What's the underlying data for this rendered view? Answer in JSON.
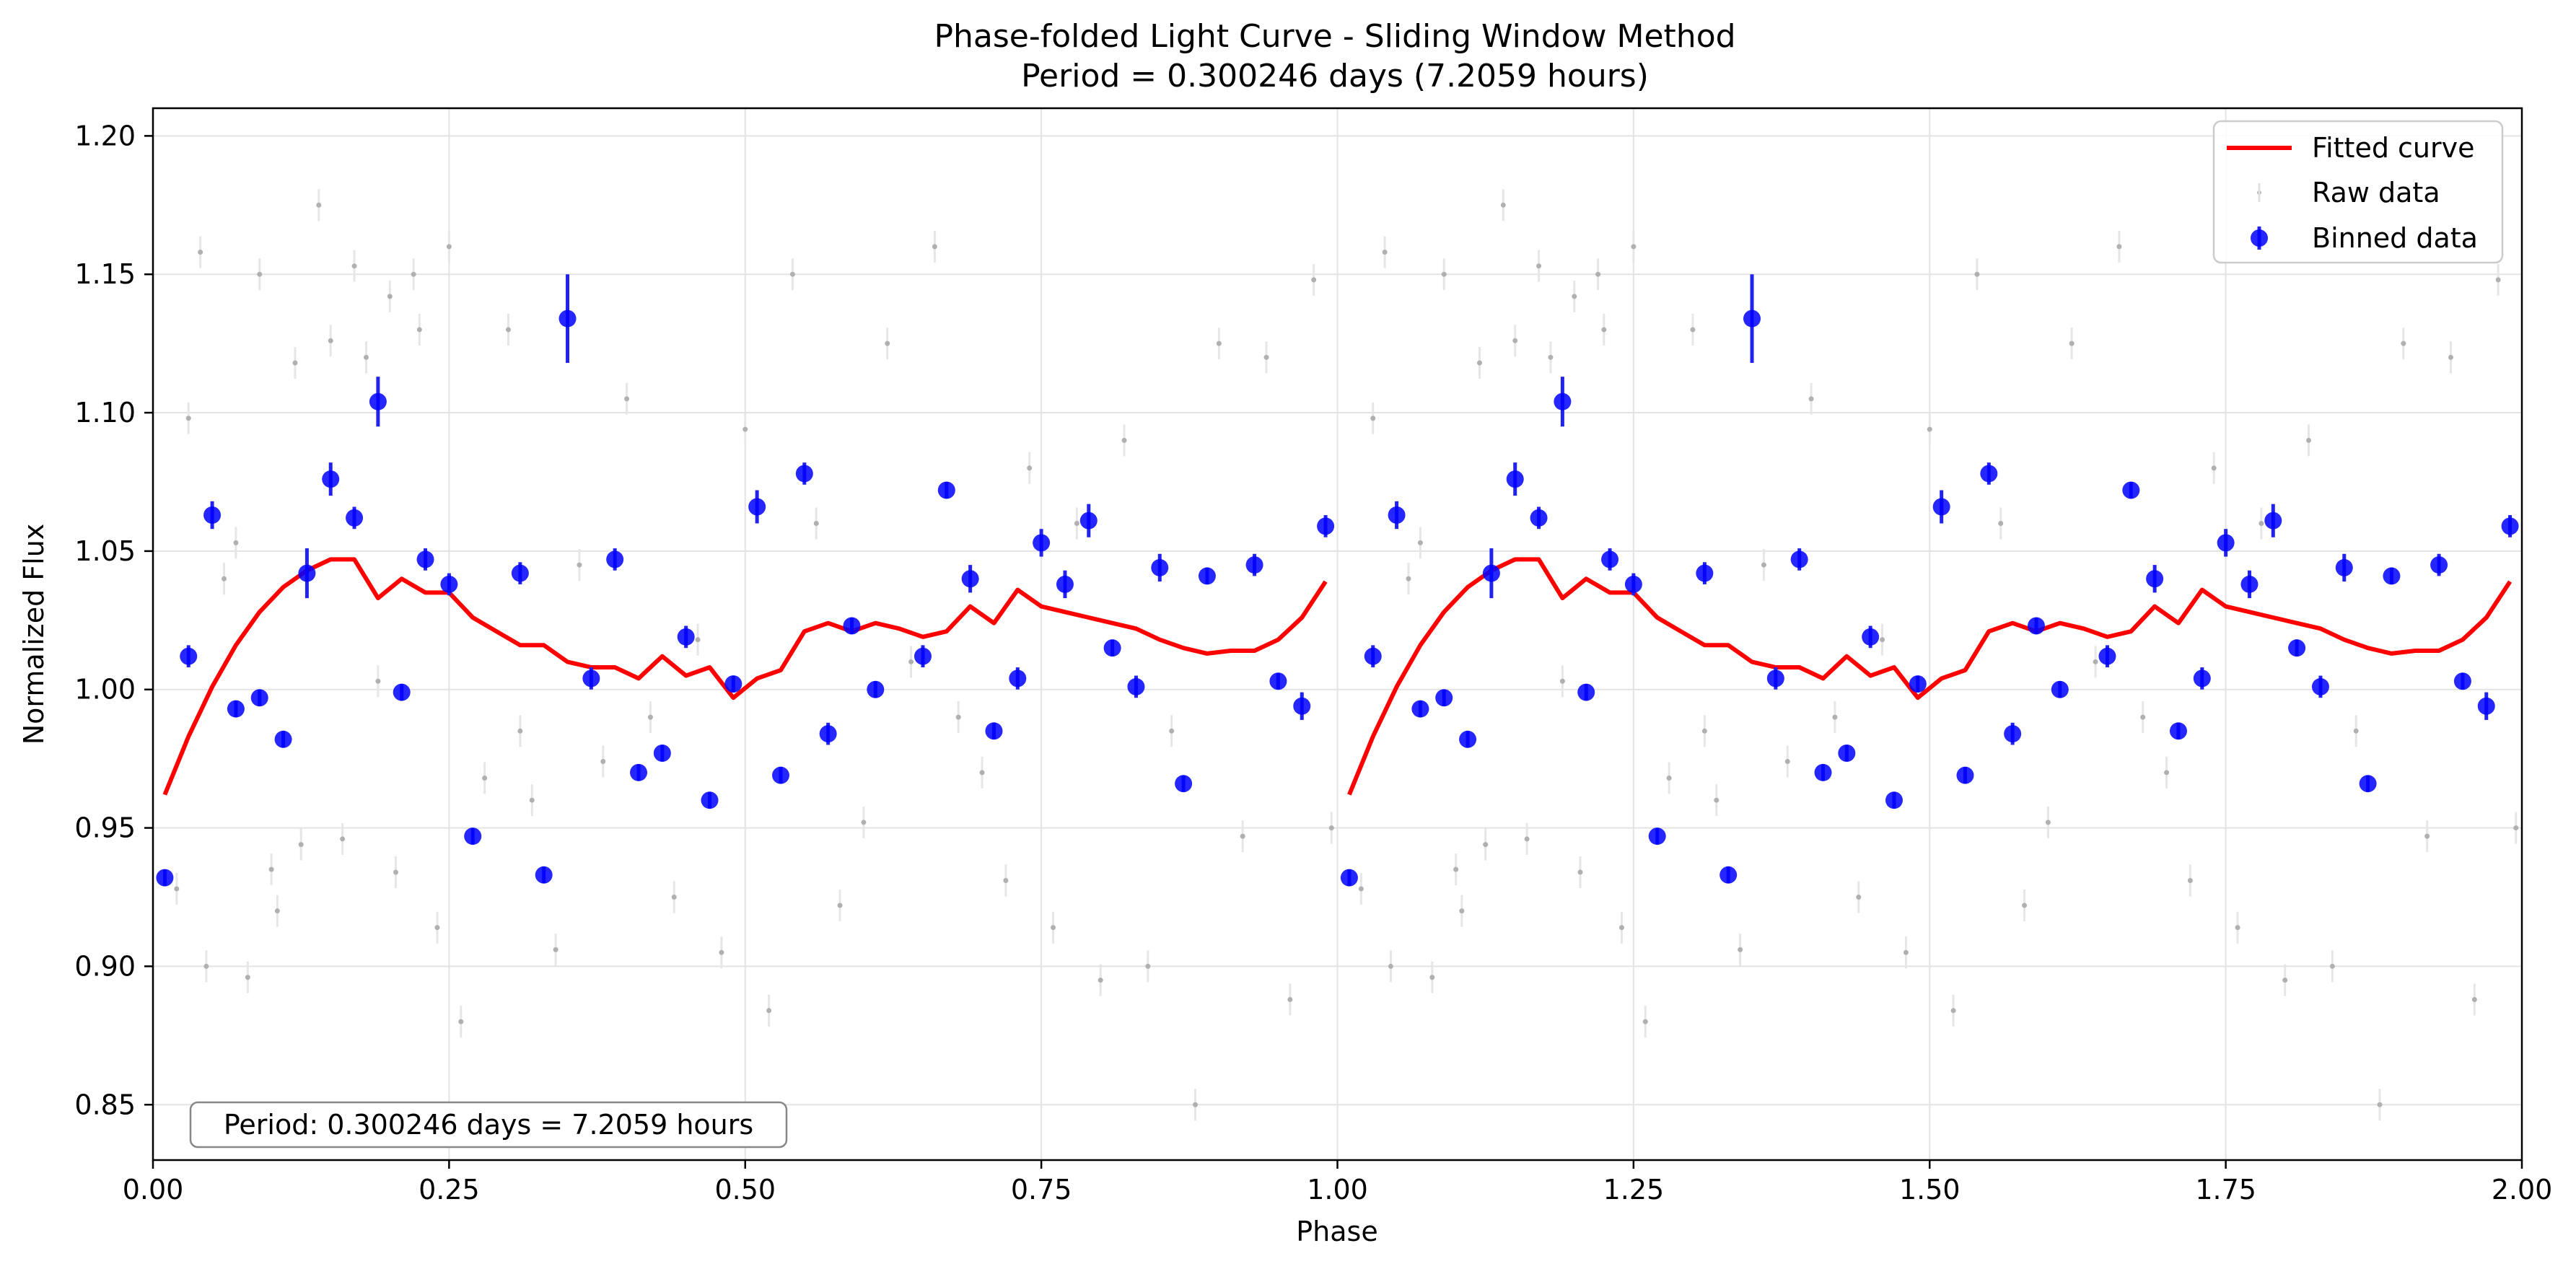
{
  "chart_data": {
    "type": "scatter",
    "title": "Phase-folded Light Curve - Sliding Window Method",
    "subtitle": "Period = 0.300246 days (7.2059 hours)",
    "xlabel": "Phase",
    "ylabel": "Normalized Flux",
    "xlim": [
      0,
      2
    ],
    "ylim": [
      0.83,
      1.21
    ],
    "x_ticks": [
      "0.00",
      "0.25",
      "0.50",
      "0.75",
      "1.00",
      "1.25",
      "1.50",
      "1.75",
      "2.00"
    ],
    "y_ticks": [
      "0.85",
      "0.90",
      "0.95",
      "1.00",
      "1.05",
      "1.10",
      "1.15",
      "1.20"
    ],
    "grid": true,
    "legend_position": "top-right",
    "annotation": "Period: 0.300246 days = 7.2059 hours",
    "series": [
      {
        "name": "Fitted curve",
        "kind": "line",
        "color": "#ff0000",
        "x": [
          0.01,
          0.03,
          0.05,
          0.07,
          0.09,
          0.11,
          0.13,
          0.15,
          0.17,
          0.19,
          0.21,
          0.23,
          0.25,
          0.27,
          0.29,
          0.31,
          0.33,
          0.35,
          0.37,
          0.39,
          0.41,
          0.43,
          0.45,
          0.47,
          0.49,
          0.51,
          0.53,
          0.55,
          0.57,
          0.59,
          0.61,
          0.63,
          0.65,
          0.67,
          0.69,
          0.71,
          0.73,
          0.75,
          0.77,
          0.79,
          0.81,
          0.83,
          0.85,
          0.87,
          0.89,
          0.91,
          0.93,
          0.95,
          0.97,
          0.99
        ],
        "y": [
          0.962,
          0.983,
          1.001,
          1.016,
          1.028,
          1.037,
          1.043,
          1.047,
          1.047,
          1.033,
          1.04,
          1.035,
          1.035,
          1.026,
          1.021,
          1.016,
          1.016,
          1.01,
          1.008,
          1.008,
          1.004,
          1.012,
          1.005,
          1.008,
          0.997,
          1.004,
          1.007,
          1.021,
          1.024,
          1.021,
          1.024,
          1.022,
          1.019,
          1.021,
          1.03,
          1.024,
          1.036,
          1.03,
          1.028,
          1.026,
          1.024,
          1.022,
          1.018,
          1.015,
          1.013,
          1.014,
          1.014,
          1.018,
          1.026,
          1.039
        ]
      },
      {
        "name": "Raw data",
        "kind": "points",
        "color": "#b0b0b0",
        "x": [
          0.02,
          0.03,
          0.04,
          0.045,
          0.06,
          0.07,
          0.08,
          0.09,
          0.1,
          0.105,
          0.12,
          0.125,
          0.14,
          0.15,
          0.16,
          0.17,
          0.18,
          0.19,
          0.2,
          0.205,
          0.22,
          0.225,
          0.24,
          0.25,
          0.26,
          0.28,
          0.3,
          0.31,
          0.32,
          0.34,
          0.36,
          0.38,
          0.4,
          0.42,
          0.44,
          0.46,
          0.48,
          0.5,
          0.52,
          0.54,
          0.56,
          0.58,
          0.6,
          0.62,
          0.64,
          0.66,
          0.68,
          0.7,
          0.72,
          0.74,
          0.76,
          0.78,
          0.8,
          0.82,
          0.84,
          0.86,
          0.88,
          0.9,
          0.92,
          0.94,
          0.96,
          0.98,
          0.995
        ],
        "y": [
          0.928,
          1.098,
          1.158,
          0.9,
          1.04,
          1.053,
          0.896,
          1.15,
          0.935,
          0.92,
          1.118,
          0.944,
          1.175,
          1.126,
          0.946,
          1.153,
          1.12,
          1.003,
          1.142,
          0.934,
          1.15,
          1.13,
          0.914,
          1.16,
          0.88,
          0.968,
          1.13,
          0.985,
          0.96,
          0.906,
          1.045,
          0.974,
          1.105,
          0.99,
          0.925,
          1.018,
          0.905,
          1.094,
          0.884,
          1.15,
          1.06,
          0.922,
          0.952,
          1.125,
          1.01,
          1.16,
          0.99,
          0.97,
          0.931,
          1.08,
          0.914,
          1.06,
          0.895,
          1.09,
          0.9,
          0.985,
          0.85,
          1.125,
          0.947,
          1.12,
          0.888,
          1.148,
          0.95
        ]
      },
      {
        "name": "Binned data",
        "kind": "errorbar",
        "color": "#0000ff",
        "x": [
          0.01,
          0.03,
          0.05,
          0.07,
          0.09,
          0.11,
          0.13,
          0.15,
          0.17,
          0.19,
          0.21,
          0.23,
          0.25,
          0.27,
          0.31,
          0.33,
          0.35,
          0.37,
          0.39,
          0.41,
          0.43,
          0.45,
          0.47,
          0.49,
          0.51,
          0.53,
          0.55,
          0.57,
          0.59,
          0.61,
          0.65,
          0.67,
          0.69,
          0.71,
          0.73,
          0.75,
          0.77,
          0.79,
          0.81,
          0.83,
          0.85,
          0.87,
          0.89,
          0.93,
          0.95,
          0.97,
          0.99
        ],
        "y": [
          0.932,
          1.012,
          1.063,
          0.993,
          0.997,
          0.982,
          1.042,
          1.076,
          1.062,
          1.104,
          0.999,
          1.047,
          1.038,
          0.947,
          1.042,
          0.933,
          1.134,
          1.004,
          1.047,
          0.97,
          0.977,
          1.019,
          0.96,
          1.002,
          1.066,
          0.969,
          1.078,
          0.984,
          1.023,
          1.0,
          1.012,
          1.072,
          1.04,
          0.985,
          1.004,
          1.053,
          1.038,
          1.061,
          1.015,
          1.001,
          1.044,
          0.966,
          1.041,
          1.045,
          1.003,
          0.994,
          1.059
        ],
        "err": [
          0.003,
          0.004,
          0.005,
          0.003,
          0.003,
          0.003,
          0.009,
          0.006,
          0.004,
          0.009,
          0.003,
          0.004,
          0.004,
          0.003,
          0.004,
          0.003,
          0.016,
          0.004,
          0.004,
          0.003,
          0.003,
          0.004,
          0.003,
          0.003,
          0.006,
          0.003,
          0.004,
          0.004,
          0.003,
          0.003,
          0.004,
          0.003,
          0.005,
          0.003,
          0.004,
          0.005,
          0.005,
          0.006,
          0.003,
          0.004,
          0.005,
          0.003,
          0.003,
          0.004,
          0.003,
          0.005,
          0.004
        ]
      }
    ]
  }
}
